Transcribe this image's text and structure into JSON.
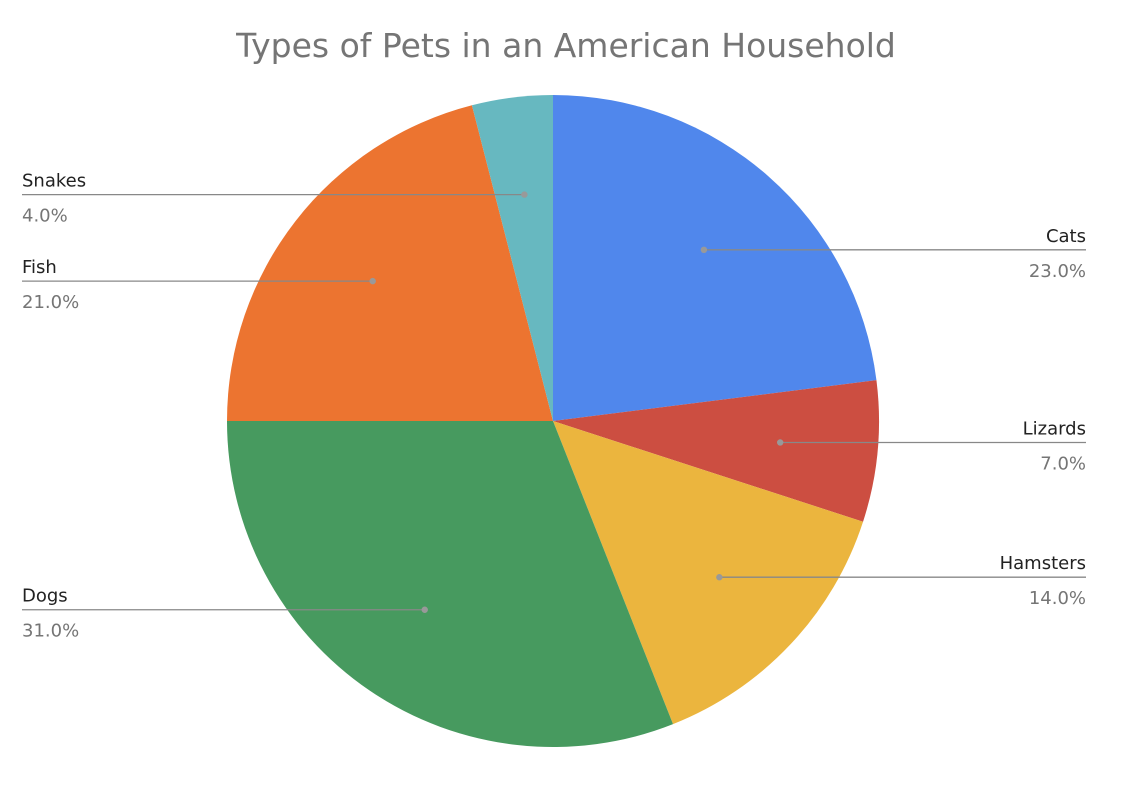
{
  "chart_data": {
    "type": "pie",
    "title": "Types of Pets in an American Household",
    "start_angle_deg": 0,
    "direction": "clockwise",
    "legend": "labels-outside",
    "slices": [
      {
        "label": "Cats",
        "value": 23.0,
        "display": "23.0%",
        "color": "#5087EC"
      },
      {
        "label": "Lizards",
        "value": 7.0,
        "display": "7.0%",
        "color": "#CC4E41"
      },
      {
        "label": "Hamsters",
        "value": 14.0,
        "display": "14.0%",
        "color": "#EBB53E"
      },
      {
        "label": "Dogs",
        "value": 31.0,
        "display": "31.0%",
        "color": "#479A5F"
      },
      {
        "label": "Fish",
        "value": 21.0,
        "display": "21.0%",
        "color": "#EC7430"
      },
      {
        "label": "Snakes",
        "value": 4.0,
        "display": "4.0%",
        "color": "#67B8C0"
      }
    ]
  }
}
